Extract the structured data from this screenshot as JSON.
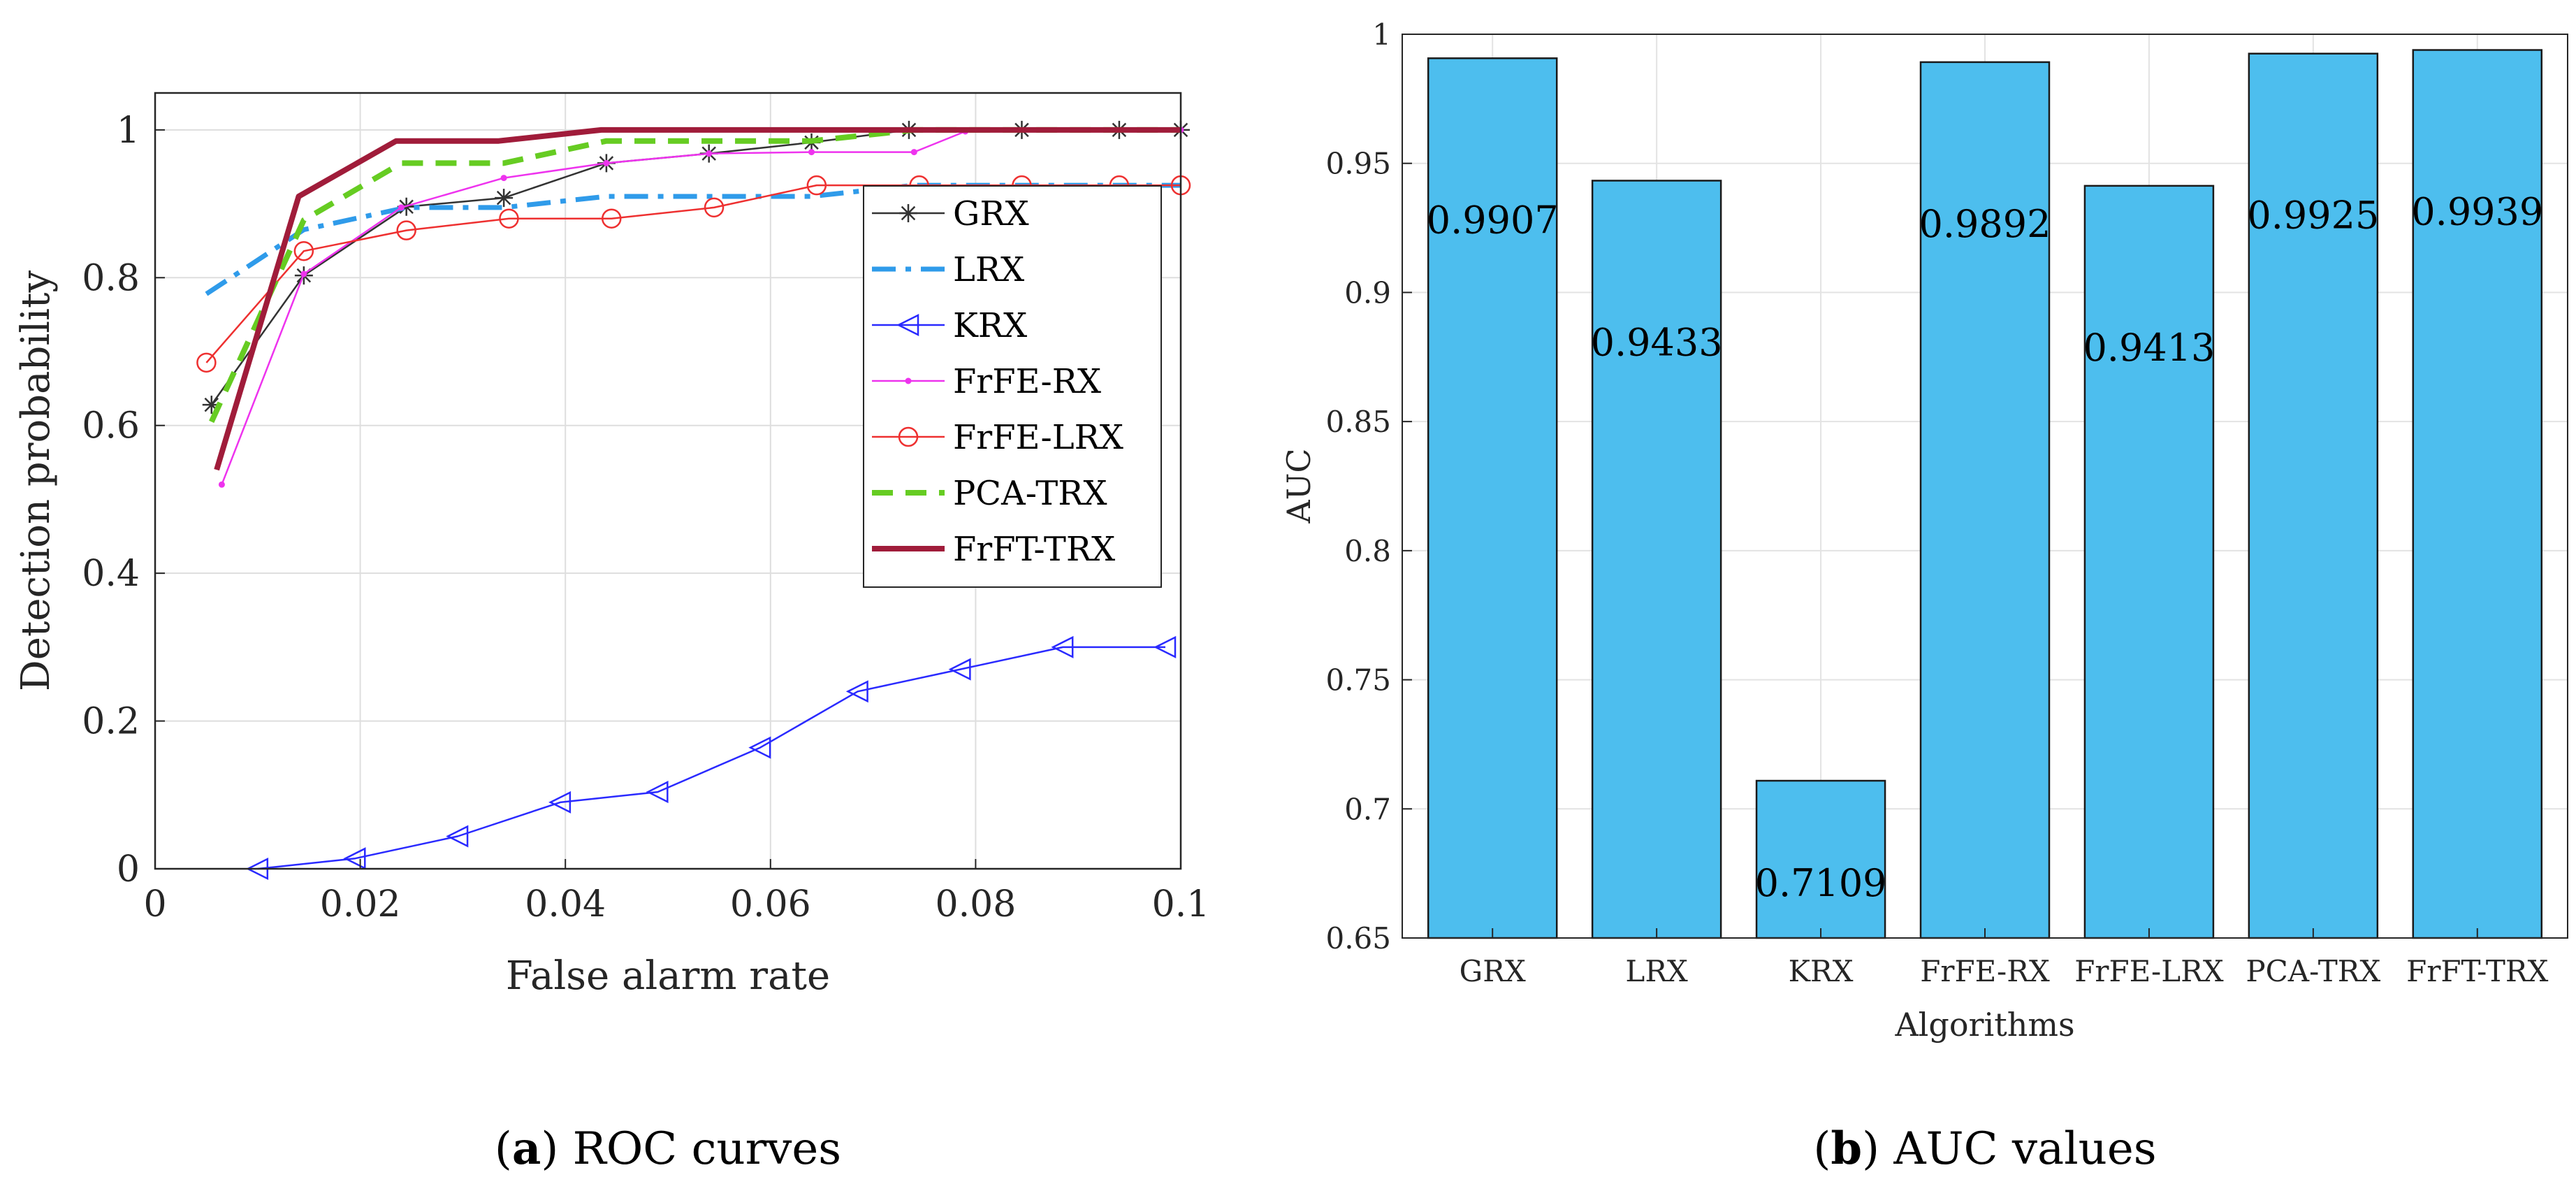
{
  "captions": {
    "a_letter": "a",
    "a_text": "ROC curves",
    "b_letter": "b",
    "b_text": "AUC values"
  },
  "chart_data": [
    {
      "type": "line",
      "panel": "a",
      "xlabel": "False alarm rate",
      "ylabel": "Detection probability",
      "xlim": [
        0,
        0.1
      ],
      "ylim": [
        0,
        1.05
      ],
      "xticks": [
        0,
        0.02,
        0.04,
        0.06,
        0.08,
        0.1
      ],
      "xtick_labels": [
        "0",
        "0.02",
        "0.04",
        "0.06",
        "0.08",
        "0.1"
      ],
      "yticks": [
        0,
        0.2,
        0.4,
        0.6,
        0.8,
        1
      ],
      "ytick_labels": [
        "0",
        "0.2",
        "0.4",
        "0.6",
        "0.8",
        "1"
      ],
      "grid": true,
      "legend_position": "right",
      "series": [
        {
          "name": "GRX",
          "color": "#333333",
          "style": "solid",
          "marker": "asterisk",
          "x": [
            0.0055,
            0.0145,
            0.0245,
            0.034,
            0.044,
            0.054,
            0.064,
            0.0735,
            0.0845,
            0.094,
            0.1
          ],
          "y": [
            0.628,
            0.803,
            0.896,
            0.908,
            0.955,
            0.968,
            0.983,
            1.0,
            1.0,
            1.0,
            1.0
          ]
        },
        {
          "name": "LRX",
          "color": "#2f9bea",
          "style": "dashdot",
          "x": [
            0.005,
            0.0145,
            0.0245,
            0.034,
            0.044,
            0.054,
            0.064,
            0.074,
            0.084,
            0.1
          ],
          "y": [
            0.778,
            0.865,
            0.895,
            0.895,
            0.91,
            0.91,
            0.91,
            0.925,
            0.925,
            0.925
          ]
        },
        {
          "name": "KRX",
          "color": "#2a2aff",
          "style": "solid",
          "marker": "triangle-left",
          "x": [
            0.01,
            0.0195,
            0.0295,
            0.0395,
            0.049,
            0.059,
            0.0685,
            0.0785,
            0.0885,
            0.0985
          ],
          "y": [
            0.0,
            0.014,
            0.044,
            0.09,
            0.104,
            0.164,
            0.24,
            0.27,
            0.3,
            0.3
          ]
        },
        {
          "name": "FrFE-RX",
          "color": "#ee33ee",
          "style": "solid",
          "marker": "point",
          "x": [
            0.0065,
            0.0145,
            0.024,
            0.034,
            0.044,
            0.054,
            0.064,
            0.074,
            0.079,
            0.1
          ],
          "y": [
            0.52,
            0.805,
            0.895,
            0.935,
            0.955,
            0.968,
            0.97,
            0.97,
            0.998,
            1.0
          ]
        },
        {
          "name": "FrFE-LRX",
          "color": "#ee3030",
          "style": "solid",
          "marker": "circle",
          "x": [
            0.005,
            0.0145,
            0.0245,
            0.0345,
            0.0445,
            0.0545,
            0.0645,
            0.0745,
            0.0845,
            0.094,
            0.1
          ],
          "y": [
            0.685,
            0.836,
            0.864,
            0.88,
            0.88,
            0.895,
            0.925,
            0.925,
            0.925,
            0.925,
            0.925
          ]
        },
        {
          "name": "PCA-TRX",
          "color": "#66cc22",
          "style": "dashed",
          "x": [
            0.0055,
            0.0145,
            0.024,
            0.034,
            0.044,
            0.054,
            0.064,
            0.074,
            0.1
          ],
          "y": [
            0.605,
            0.878,
            0.955,
            0.955,
            0.985,
            0.985,
            0.985,
            1.0,
            1.0
          ]
        },
        {
          "name": "FrFT-TRX",
          "color": "#a01c3a",
          "style": "solid",
          "x": [
            0.006,
            0.014,
            0.0235,
            0.0335,
            0.0435,
            0.054,
            0.064,
            0.074,
            0.084,
            0.1
          ],
          "y": [
            0.54,
            0.91,
            0.985,
            0.985,
            1.0,
            1.0,
            1.0,
            1.0,
            1.0,
            1.0
          ]
        }
      ]
    },
    {
      "type": "bar",
      "panel": "b",
      "xlabel": "Algorithms",
      "ylabel": "AUC",
      "ylim": [
        0.65,
        1
      ],
      "yticks": [
        0.65,
        0.7,
        0.75,
        0.8,
        0.85,
        0.9,
        0.95,
        1
      ],
      "ytick_labels": [
        "0.65",
        "0.7",
        "0.75",
        "0.8",
        "0.85",
        "0.9",
        "0.95",
        "1"
      ],
      "grid": true,
      "bar_color": "#4dbeee",
      "categories": [
        "GRX",
        "LRX",
        "KRX",
        "FrFE-RX",
        "FrFE-LRX",
        "PCA-TRX",
        "FrFT-TRX"
      ],
      "values": [
        0.9907,
        0.9433,
        0.7109,
        0.9892,
        0.9413,
        0.9925,
        0.9939
      ],
      "value_labels": [
        "0.9907",
        "0.9433",
        "0.7109",
        "0.9892",
        "0.9413",
        "0.9925",
        "0.9939"
      ]
    }
  ]
}
